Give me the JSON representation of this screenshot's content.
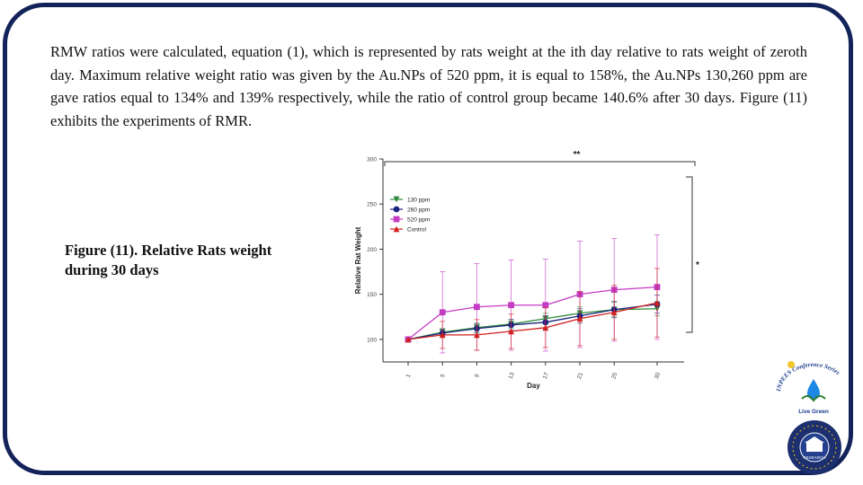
{
  "slide": {
    "paragraph": "RMW ratios were calculated, equation (1), which is represented by rats weight at the ith day relative to rats weight of zeroth day. Maximum relative weight ratio was given by the Au.NPs of 520 ppm, it is equal to 158%, the Au.NPs 130,260 ppm are gave ratios equal to 134% and 139% respectively, while the ratio of control group became 140.6% after 30 days. Figure (11) exhibits the experiments of RMR.",
    "caption": "Figure (11). Relative Rats weight during 30 days"
  },
  "logos": {
    "top_arc_text": "INPEES Conference Series",
    "top_label": "Live Green",
    "bottom_text": "RESEARCH"
  },
  "colors": {
    "frame": "#13235a",
    "s130": "#2e8b3a",
    "s260": "#1a237e",
    "s520": "#c43bc4",
    "control": "#d21f1f"
  },
  "chart_data": {
    "type": "line",
    "title": "",
    "xlabel": "Day",
    "ylabel": "Relative Rat Weight",
    "x": [
      1,
      5,
      9,
      13,
      17,
      21,
      25,
      30
    ],
    "ylim": [
      75,
      300
    ],
    "yticks": [
      100,
      150,
      200,
      250,
      300
    ],
    "series": [
      {
        "name": "130 ppm",
        "marker": "triangle-down",
        "color": "#2e8b3a",
        "values": [
          100,
          108,
          113,
          117,
          123,
          129,
          133,
          134
        ],
        "errors": [
          0,
          4,
          5,
          5,
          6,
          7,
          8,
          8
        ]
      },
      {
        "name": "260 ppm",
        "marker": "circle",
        "color": "#1a237e",
        "values": [
          100,
          107,
          112,
          116,
          119,
          126,
          133,
          139
        ],
        "errors": [
          0,
          4,
          5,
          6,
          7,
          8,
          9,
          10
        ]
      },
      {
        "name": "520 ppm",
        "marker": "square",
        "color": "#c43bc4",
        "values": [
          100,
          130,
          136,
          138,
          138,
          150,
          155,
          158
        ],
        "errors": [
          0,
          45,
          48,
          50,
          51,
          59,
          57,
          58
        ]
      },
      {
        "name": "Control",
        "marker": "triangle",
        "color": "#d21f1f",
        "values": [
          100,
          105,
          105,
          109,
          113,
          123,
          130,
          140.6
        ],
        "errors": [
          0,
          15,
          17,
          19,
          22,
          30,
          30,
          38
        ]
      }
    ],
    "annotations": [
      {
        "label": "**",
        "span": "1-30"
      },
      {
        "label": "*",
        "span": "5-30"
      }
    ],
    "legend": "top-left"
  }
}
